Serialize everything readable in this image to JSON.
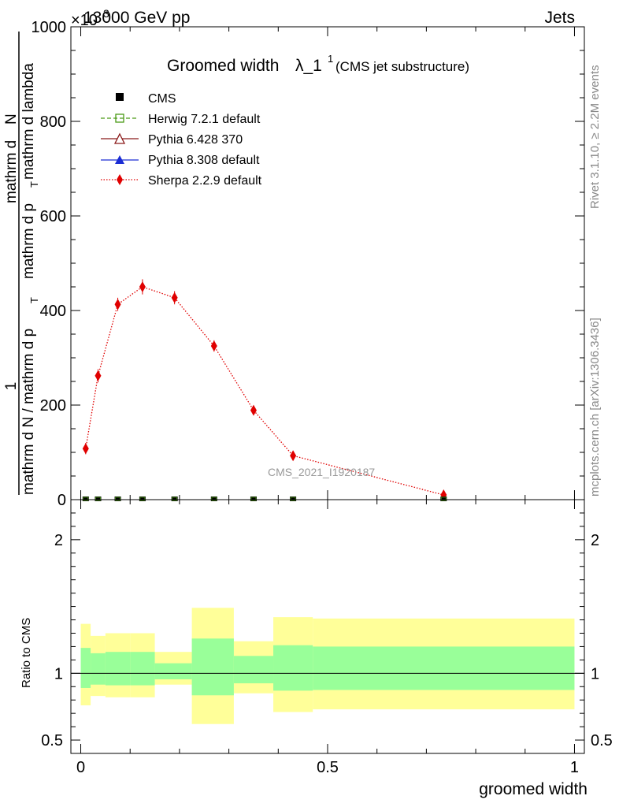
{
  "header": {
    "energy_label": "13000 GeV pp",
    "exponent_label": "×10",
    "category_label": "Jets"
  },
  "side_labels": {
    "rivet": "Rivet 3.1.10, ≥ 2.2M events",
    "mcplots": "mcplots.cern.ch [arXiv:1306.3436]"
  },
  "chart_data": [
    {
      "type": "line",
      "title": "Groomed width",
      "title_lambda": "λ_1",
      "title_sup": "1",
      "subtitle": "(CMS jet substructure)",
      "analysis_label": "CMS_2021_I1920187",
      "ylabel_top": "1",
      "ylabel_num_left": "mathrm d N / mathrm d p",
      "ylabel_num_right": "mathrm d p",
      "ylabel_den_text": "mathrm d p",
      "ylabel_den_right": "mathrm d lambda",
      "ylabel_T": "T",
      "ylabel_dN": "mathrm d",
      "ylabel_N": "N",
      "ylim": [
        0,
        1000
      ],
      "xlim": [
        -0.02,
        1.02
      ],
      "ylabel_exp": "3",
      "y_ticks": [
        "0",
        "200",
        "400",
        "600",
        "800",
        "1000"
      ],
      "legend": [
        "CMS",
        "Herwig 7.2.1 default",
        "Pythia 6.428 370",
        "Pythia 8.308 default",
        "Sherpa 2.2.9 default"
      ],
      "series": [
        {
          "name": "CMS",
          "x": [
            0.01,
            0.035,
            0.075,
            0.125,
            0.19,
            0.27,
            0.35,
            0.43,
            0.735
          ],
          "y": [
            0,
            0,
            0,
            0,
            0,
            0,
            0,
            0,
            0
          ]
        },
        {
          "name": "Sherpa 2.2.9 default",
          "x": [
            0.01,
            0.035,
            0.075,
            0.125,
            0.19,
            0.27,
            0.35,
            0.43,
            0.735
          ],
          "y": [
            108,
            262,
            413,
            450,
            427,
            325,
            189,
            93,
            10
          ],
          "err": [
            12,
            14,
            14,
            16,
            14,
            12,
            10,
            8,
            4
          ]
        }
      ]
    },
    {
      "type": "area",
      "ylabel": "Ratio to CMS",
      "xlabel": "groomed width",
      "ylim": [
        0.4,
        2.3
      ],
      "xlim": [
        -0.02,
        1.02
      ],
      "y_ticks": [
        "0.5",
        "1",
        "2"
      ],
      "x_ticks": [
        "0",
        "0.5",
        "1"
      ],
      "bins": [
        {
          "lo": 0.0,
          "hi": 0.02,
          "inner": [
            0.89,
            1.19
          ],
          "outer": [
            0.76,
            1.37
          ]
        },
        {
          "lo": 0.02,
          "hi": 0.05,
          "inner": [
            0.915,
            1.15
          ],
          "outer": [
            0.83,
            1.28
          ]
        },
        {
          "lo": 0.05,
          "hi": 0.1,
          "inner": [
            0.91,
            1.16
          ],
          "outer": [
            0.82,
            1.3
          ]
        },
        {
          "lo": 0.1,
          "hi": 0.15,
          "inner": [
            0.91,
            1.16
          ],
          "outer": [
            0.82,
            1.3
          ]
        },
        {
          "lo": 0.15,
          "hi": 0.225,
          "inner": [
            0.955,
            1.075
          ],
          "outer": [
            0.915,
            1.16
          ]
        },
        {
          "lo": 0.225,
          "hi": 0.31,
          "inner": [
            0.835,
            1.26
          ],
          "outer": [
            0.62,
            1.49
          ]
        },
        {
          "lo": 0.31,
          "hi": 0.39,
          "inner": [
            0.925,
            1.13
          ],
          "outer": [
            0.85,
            1.24
          ]
        },
        {
          "lo": 0.39,
          "hi": 0.47,
          "inner": [
            0.87,
            1.21
          ],
          "outer": [
            0.71,
            1.42
          ]
        },
        {
          "lo": 0.47,
          "hi": 1.0,
          "inner": [
            0.875,
            1.2
          ],
          "outer": [
            0.73,
            1.41
          ]
        }
      ]
    }
  ]
}
